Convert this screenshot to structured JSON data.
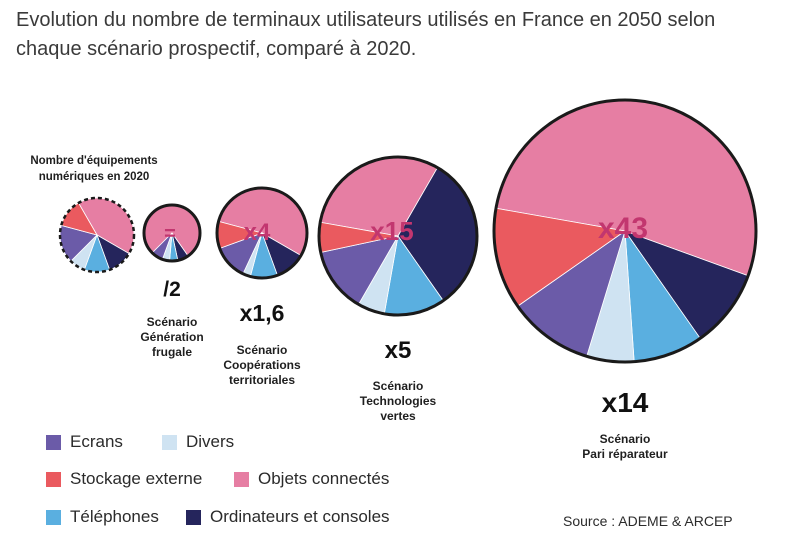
{
  "title": "Evolution du nombre de terminaux utilisateurs utilisés en France en 2050 selon chaque scénario prospectif, comparé à 2020.",
  "source": "Source : ADEME & ARCEP",
  "colors": {
    "ecrans": "#6b5ba8",
    "divers": "#cfe3f2",
    "stockage": "#ea5a5f",
    "objets": "#e67ea3",
    "telephones": "#5aafe0",
    "ordinateurs": "#25255c"
  },
  "legend": [
    {
      "key": "ecrans",
      "label": "Ecrans"
    },
    {
      "key": "divers",
      "label": "Divers"
    },
    {
      "key": "stockage",
      "label": "Stockage externe"
    },
    {
      "key": "objets",
      "label": "Objets connectés"
    },
    {
      "key": "telephones",
      "label": "Téléphones"
    },
    {
      "key": "ordinateurs",
      "label": "Ordinateurs et consoles"
    }
  ],
  "chart_data": {
    "type": "other",
    "baseline_label": "Nombre d'équipements numériques en 2020",
    "scenarios": [
      {
        "name": "Scénario Génération frugale",
        "name_lines": [
          "Scénario",
          "Génération",
          "frugale"
        ],
        "objets_factor": "=",
        "total_factor": "/2",
        "total_value": 0.5
      },
      {
        "name": "Scénario Coopérations territoriales",
        "name_lines": [
          "Scénario",
          "Coopérations",
          "territoriales"
        ],
        "objets_factor": "x4",
        "total_factor": "x1,6",
        "total_value": 1.6
      },
      {
        "name": "Scénario Technologies vertes",
        "name_lines": [
          "Scénario",
          "Technologies",
          "vertes"
        ],
        "objets_factor": "x15",
        "total_factor": "x5",
        "total_value": 5
      },
      {
        "name": "Scénario Pari réparateur",
        "name_lines": [
          "Scénario",
          "Pari réparateur"
        ],
        "objets_factor": "x43",
        "total_factor": "x14",
        "total_value": 14
      }
    ]
  }
}
